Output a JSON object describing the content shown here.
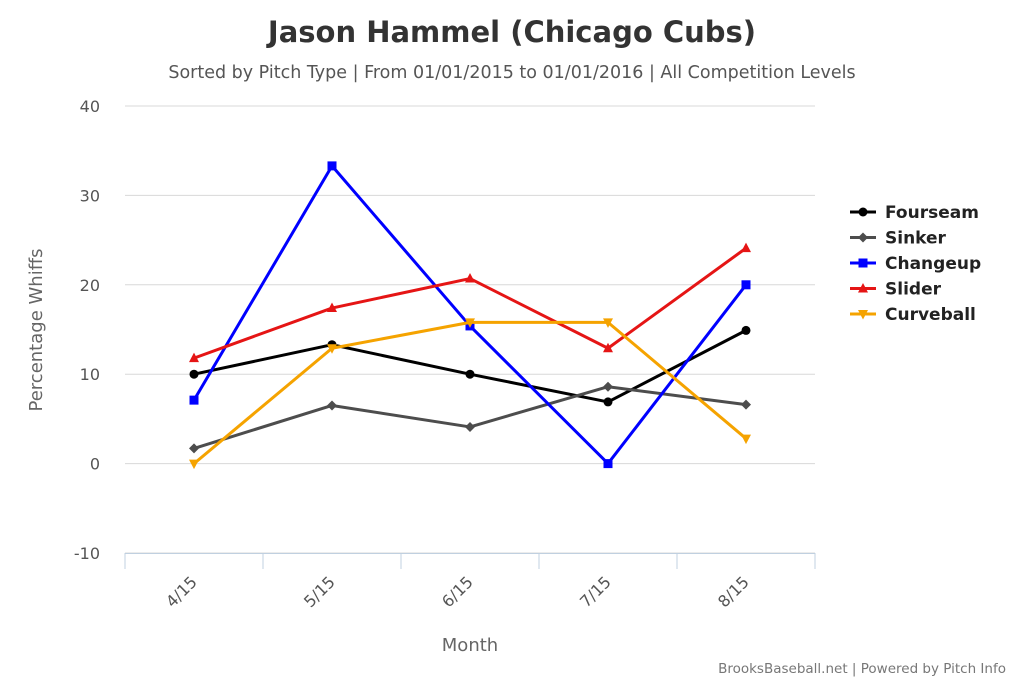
{
  "credits": "BrooksBaseball.net | Powered by Pitch Info",
  "chart_data": {
    "type": "line",
    "title": "Jason Hammel (Chicago Cubs)",
    "subtitle": "Sorted by Pitch Type | From 01/01/2015 to 01/01/2016 | All Competition Levels",
    "xlabel": "Month",
    "ylabel": "Percentage Whiffs",
    "categories": [
      "4/15",
      "5/15",
      "6/15",
      "7/15",
      "8/15"
    ],
    "ylim": [
      -10,
      40
    ],
    "yticks": [
      "-10",
      "0",
      "10",
      "20",
      "30",
      "40"
    ],
    "grid": true,
    "legend_position": "right",
    "series": [
      {
        "name": "Fourseam",
        "color": "#000000",
        "marker": "circle",
        "values": [
          10.0,
          13.3,
          10.0,
          6.9,
          14.9
        ]
      },
      {
        "name": "Sinker",
        "color": "#4d4d4d",
        "marker": "diamond",
        "values": [
          1.7,
          6.5,
          4.1,
          8.6,
          6.6
        ]
      },
      {
        "name": "Changeup",
        "color": "#0000ff",
        "marker": "square",
        "values": [
          7.1,
          33.3,
          15.4,
          0.0,
          20.0
        ]
      },
      {
        "name": "Slider",
        "color": "#e51515",
        "marker": "triangle",
        "values": [
          11.8,
          17.4,
          20.7,
          12.9,
          24.1
        ]
      },
      {
        "name": "Curveball",
        "color": "#f5a300",
        "marker": "triangle-down",
        "values": [
          0.0,
          12.9,
          15.8,
          15.8,
          2.8
        ]
      }
    ]
  }
}
